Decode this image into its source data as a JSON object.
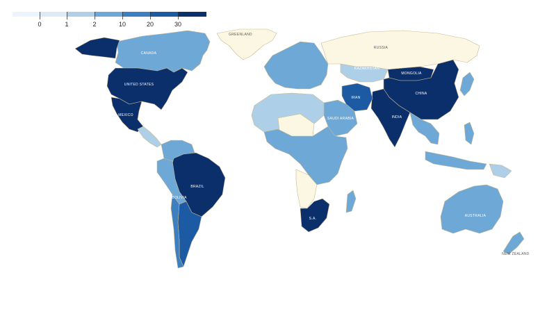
{
  "legend": {
    "ticks": [
      "0",
      "1",
      "2",
      "10",
      "20",
      "30"
    ],
    "bins": [
      {
        "color": "#eef4fb"
      },
      {
        "color": "#dfeaf6"
      },
      {
        "color": "#aecfe8"
      },
      {
        "color": "#6ea8d6"
      },
      {
        "color": "#3d80c2"
      },
      {
        "color": "#1c5aa3"
      },
      {
        "color": "#0b2f6b"
      }
    ]
  },
  "colors": {
    "no_data": "#fbf7e3",
    "border": "#c9b98e"
  },
  "regions": [
    {
      "name": "Greenland",
      "label": "GREENLAND",
      "bin": "no_data"
    },
    {
      "name": "Canada",
      "label": "CANADA",
      "bin": 3
    },
    {
      "name": "Alaska",
      "label": "",
      "bin": 6
    },
    {
      "name": "United States",
      "label": "UNITED STATES",
      "bin": 6
    },
    {
      "name": "Mexico",
      "label": "MEXICO",
      "bin": 6
    },
    {
      "name": "Central America",
      "label": "",
      "bin": 2
    },
    {
      "name": "Colombia / Venezuela",
      "label": "",
      "bin": 3
    },
    {
      "name": "Brazil",
      "label": "BRAZIL",
      "bin": 6
    },
    {
      "name": "Peru / Bolivia",
      "label": "BOLIVIA",
      "bin": 3
    },
    {
      "name": "Argentina",
      "label": "",
      "bin": 5
    },
    {
      "name": "Chile",
      "label": "",
      "bin": 4
    },
    {
      "name": "Europe",
      "label": "",
      "bin": 3
    },
    {
      "name": "Russia",
      "label": "RUSSIA",
      "bin": "no_data"
    },
    {
      "name": "Kazakhstan",
      "label": "KAZAKHSTAN",
      "bin": 2
    },
    {
      "name": "Mongolia",
      "label": "MONGOLIA",
      "bin": 6
    },
    {
      "name": "China",
      "label": "CHINA",
      "bin": 6
    },
    {
      "name": "India",
      "label": "INDIA",
      "bin": 6
    },
    {
      "name": "Iran",
      "label": "IRAN",
      "bin": 5
    },
    {
      "name": "Saudi Arabia",
      "label": "SAUDI ARABIA",
      "bin": 3
    },
    {
      "name": "North Africa",
      "label": "",
      "bin": 2
    },
    {
      "name": "Sahara",
      "label": "",
      "bin": "no_data"
    },
    {
      "name": "Central Africa",
      "label": "",
      "bin": 3
    },
    {
      "name": "Angola / Namibia",
      "label": "",
      "bin": "no_data"
    },
    {
      "name": "South Africa",
      "label": "S.A.",
      "bin": 6
    },
    {
      "name": "Madagascar",
      "label": "",
      "bin": 3
    },
    {
      "name": "Southeast Asia",
      "label": "",
      "bin": 3
    },
    {
      "name": "Indonesia",
      "label": "",
      "bin": 3
    },
    {
      "name": "Papua New Guinea",
      "label": "",
      "bin": 2
    },
    {
      "name": "Australia",
      "label": "AUSTRALIA",
      "bin": 3
    },
    {
      "name": "New Zealand",
      "label": "NEW ZEALAND",
      "bin": 3
    },
    {
      "name": "Japan",
      "label": "",
      "bin": 3
    },
    {
      "name": "Philippines",
      "label": "",
      "bin": 3
    }
  ]
}
